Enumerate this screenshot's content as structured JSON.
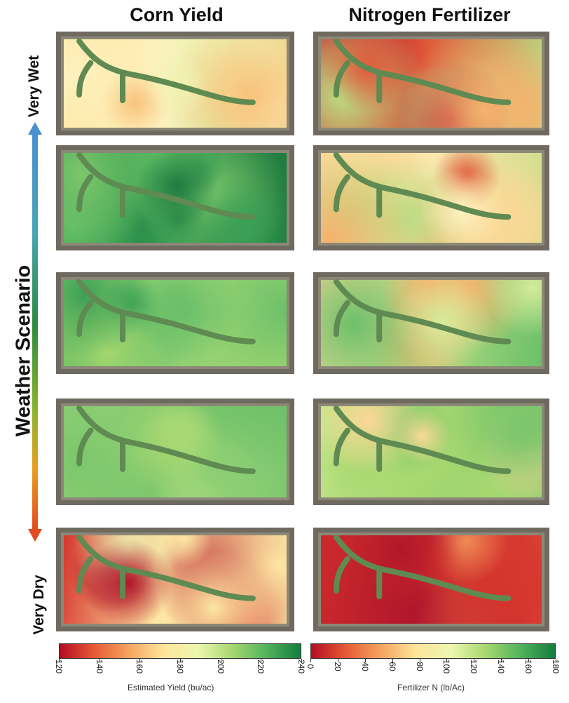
{
  "columns": {
    "left_title": "Corn Yield",
    "right_title": "Nitrogen Fertilizer"
  },
  "axis": {
    "title": "Weather Scenario",
    "top_label": "Very Wet",
    "bottom_label": "Very Dry"
  },
  "scenarios": [
    {
      "yield_tones": [
        "#fde6a3",
        "#f8c37c",
        "#fef2bf",
        "#eef3b2",
        "#b9de84"
      ],
      "nitrogen_tones": [
        "#b1162a",
        "#cc2b2c",
        "#e05b3a",
        "#f6b26e",
        "#b9de84"
      ]
    },
    {
      "yield_tones": [
        "#3aa055",
        "#5dbb63",
        "#2c8e4a",
        "#7cc66b",
        "#1f7a3f"
      ],
      "nitrogen_tones": [
        "#fbd896",
        "#f6b26e",
        "#fef2bf",
        "#e05b3a",
        "#b9de84"
      ]
    },
    {
      "yield_tones": [
        "#6cc06a",
        "#52b35c",
        "#8acd72",
        "#3aa055",
        "#a7d870"
      ],
      "nitrogen_tones": [
        "#d5ec9a",
        "#fbd896",
        "#b9de84",
        "#f6b26e",
        "#6cc06a"
      ]
    },
    {
      "yield_tones": [
        "#8acd72",
        "#a7d870",
        "#7cc66b",
        "#c5e68a",
        "#6cc06a"
      ],
      "nitrogen_tones": [
        "#c5e68a",
        "#eef3b2",
        "#a7d870",
        "#fbd896",
        "#7cc66b"
      ]
    },
    {
      "yield_tones": [
        "#d6372e",
        "#f08a55",
        "#fde6a3",
        "#b1162a",
        "#eef3b2"
      ],
      "nitrogen_tones": [
        "#cc2b2c",
        "#e05b3a",
        "#b1162a",
        "#d6372e",
        "#f08a55"
      ]
    }
  ],
  "colorbars": {
    "yield": {
      "label": "Estimated Yield (bu/ac)",
      "ticks": [
        "120",
        "140",
        "160",
        "180",
        "200",
        "220",
        "240"
      ],
      "colors": [
        "#b40b22",
        "#e65a35",
        "#f5a45e",
        "#fde49a",
        "#eef7b0",
        "#a7d870",
        "#52b35c",
        "#137d3e"
      ]
    },
    "nitrogen": {
      "label": "Fertilizer N (lb/Ac)",
      "ticks": [
        "0",
        "20",
        "40",
        "60",
        "80",
        "100",
        "120",
        "140",
        "160",
        "180"
      ],
      "colors": [
        "#b40b22",
        "#e65a35",
        "#f5a45e",
        "#fde49a",
        "#eef7b0",
        "#a7d870",
        "#52b35c",
        "#137d3e"
      ]
    }
  },
  "stream_color": "#5f8a52"
}
